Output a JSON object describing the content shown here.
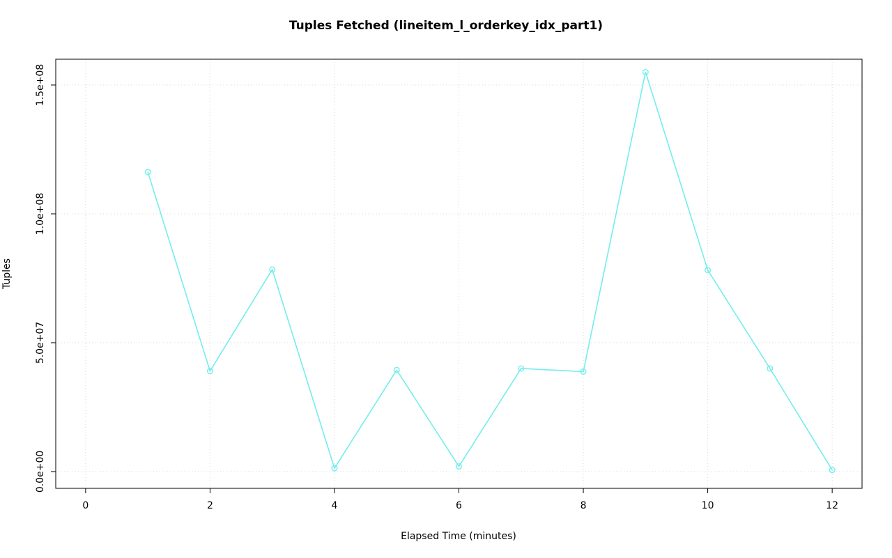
{
  "chart_data": {
    "type": "line",
    "title": "Tuples Fetched (lineitem_l_orderkey_idx_part1)",
    "xlabel": "Elapsed Time (minutes)",
    "ylabel": "Tuples",
    "x": [
      1,
      2,
      3,
      4,
      5,
      6,
      7,
      8,
      9,
      10,
      11,
      12
    ],
    "y": [
      116200000,
      39000000,
      78400000,
      1300000,
      39400000,
      2000000,
      40000000,
      38800000,
      155000000,
      78200000,
      40000000,
      600000
    ],
    "xticks": [
      0,
      2,
      4,
      6,
      8,
      10,
      12
    ],
    "xtick_labels": [
      "0",
      "2",
      "4",
      "6",
      "8",
      "10",
      "12"
    ],
    "yticks": [
      0,
      50000000,
      100000000,
      150000000
    ],
    "ytick_labels": [
      "0.0e+00",
      "5.0e+07",
      "1.0e+08",
      "1.5e+08"
    ],
    "xlim": [
      -0.48,
      12.48
    ],
    "ylim": [
      -6500000,
      160000000
    ],
    "grid": true,
    "grid_style": "dotted",
    "legend_position": "none",
    "line_color": "#74EDED",
    "point_style": "open-circle",
    "grid_color": "#D8D8D8",
    "axis_color": "#000000",
    "background": "#FFFFFF"
  }
}
